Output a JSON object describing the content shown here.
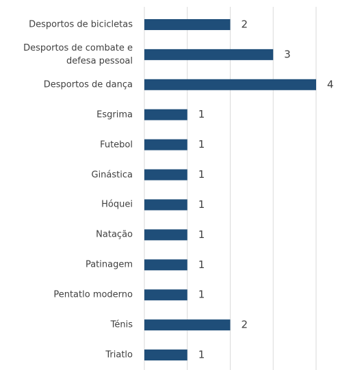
{
  "chart_data": {
    "type": "bar",
    "orientation": "horizontal",
    "categories": [
      "Desportos de bicicletas",
      "Desportos de combate e defesa pessoal",
      "Desportos de dança",
      "Esgrima",
      "Futebol",
      "Ginástica",
      "Hóquei",
      "Natação",
      "Patinagem",
      "Pentatlo moderno",
      "Ténis",
      "Triatlo"
    ],
    "values": [
      2,
      3,
      4,
      1,
      1,
      1,
      1,
      1,
      1,
      1,
      2,
      1
    ],
    "color": "#1f4e79",
    "xlim": [
      0,
      4
    ],
    "xticks": [
      0,
      1,
      2,
      3,
      4
    ],
    "grid": true
  }
}
